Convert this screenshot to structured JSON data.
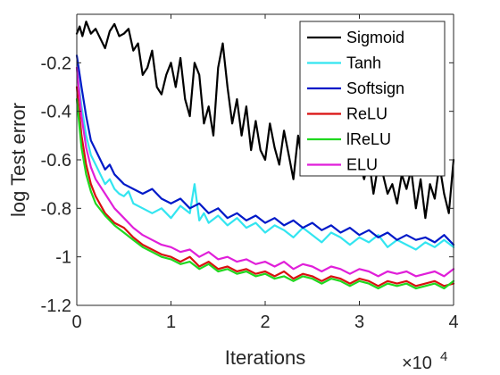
{
  "chart_data": {
    "type": "line",
    "xlabel": "Iterations",
    "ylabel": "log Test error",
    "x_multiplier": "×10",
    "x_multiplier_exp": "4",
    "xlim": [
      0,
      4
    ],
    "ylim": [
      -1.2,
      0
    ],
    "xticks": [
      0,
      1,
      2,
      3,
      4
    ],
    "xtick_labels": [
      "0",
      "1",
      "2",
      "3",
      "4"
    ],
    "yticks": [
      -1.2,
      -1,
      -0.8,
      -0.6,
      -0.4,
      -0.2
    ],
    "ytick_labels": [
      "-1.2",
      "-1",
      "-0.8",
      "-0.6",
      "-0.4",
      "-0.2"
    ],
    "grid": false,
    "legend_position": "top-right",
    "series": [
      {
        "name": "Sigmoid",
        "color": "#000000",
        "x": [
          0,
          0.03,
          0.06,
          0.1,
          0.15,
          0.2,
          0.25,
          0.3,
          0.35,
          0.4,
          0.45,
          0.5,
          0.55,
          0.6,
          0.65,
          0.7,
          0.75,
          0.8,
          0.85,
          0.9,
          0.95,
          1.0,
          1.05,
          1.1,
          1.15,
          1.2,
          1.25,
          1.3,
          1.35,
          1.4,
          1.45,
          1.5,
          1.55,
          1.6,
          1.65,
          1.7,
          1.75,
          1.8,
          1.85,
          1.9,
          1.95,
          2.0,
          2.05,
          2.1,
          2.15,
          2.2,
          2.25,
          2.3,
          2.35,
          2.4,
          2.45,
          2.5,
          2.55,
          2.6,
          2.65,
          2.7,
          2.75,
          2.8,
          2.85,
          2.9,
          2.95,
          3.0,
          3.05,
          3.1,
          3.15,
          3.2,
          3.25,
          3.3,
          3.35,
          3.4,
          3.45,
          3.5,
          3.55,
          3.6,
          3.65,
          3.7,
          3.75,
          3.8,
          3.85,
          3.9,
          3.95,
          4.0
        ],
        "y": [
          -0.08,
          -0.05,
          -0.09,
          -0.03,
          -0.08,
          -0.06,
          -0.1,
          -0.14,
          -0.07,
          -0.04,
          -0.09,
          -0.08,
          -0.06,
          -0.15,
          -0.12,
          -0.25,
          -0.22,
          -0.15,
          -0.3,
          -0.33,
          -0.25,
          -0.2,
          -0.3,
          -0.18,
          -0.35,
          -0.42,
          -0.2,
          -0.25,
          -0.45,
          -0.38,
          -0.5,
          -0.22,
          -0.12,
          -0.3,
          -0.45,
          -0.35,
          -0.5,
          -0.38,
          -0.56,
          -0.44,
          -0.56,
          -0.6,
          -0.45,
          -0.55,
          -0.62,
          -0.48,
          -0.58,
          -0.68,
          -0.5,
          -0.62,
          -0.55,
          -0.64,
          -0.58,
          -0.52,
          -0.6,
          -0.5,
          -0.65,
          -0.58,
          -0.52,
          -0.64,
          -0.56,
          -0.61,
          -0.68,
          -0.6,
          -0.74,
          -0.62,
          -0.66,
          -0.74,
          -0.7,
          -0.78,
          -0.66,
          -0.72,
          -0.64,
          -0.8,
          -0.68,
          -0.84,
          -0.7,
          -0.76,
          -0.62,
          -0.74,
          -0.82,
          -0.6
        ]
      },
      {
        "name": "Tanh",
        "color": "#33e5f0",
        "x": [
          0,
          0.05,
          0.1,
          0.15,
          0.2,
          0.25,
          0.3,
          0.35,
          0.4,
          0.45,
          0.5,
          0.55,
          0.6,
          0.7,
          0.8,
          0.9,
          1.0,
          1.1,
          1.2,
          1.25,
          1.3,
          1.35,
          1.4,
          1.5,
          1.6,
          1.7,
          1.8,
          1.9,
          2.0,
          2.1,
          2.2,
          2.3,
          2.4,
          2.5,
          2.6,
          2.7,
          2.8,
          2.9,
          3.0,
          3.1,
          3.2,
          3.3,
          3.4,
          3.5,
          3.6,
          3.7,
          3.8,
          3.9,
          4.0
        ],
        "y": [
          -0.22,
          -0.38,
          -0.5,
          -0.58,
          -0.62,
          -0.66,
          -0.7,
          -0.68,
          -0.72,
          -0.74,
          -0.75,
          -0.73,
          -0.78,
          -0.8,
          -0.82,
          -0.8,
          -0.84,
          -0.79,
          -0.82,
          -0.7,
          -0.85,
          -0.82,
          -0.86,
          -0.83,
          -0.87,
          -0.84,
          -0.88,
          -0.86,
          -0.9,
          -0.87,
          -0.89,
          -0.92,
          -0.88,
          -0.91,
          -0.94,
          -0.9,
          -0.92,
          -0.95,
          -0.92,
          -0.94,
          -0.91,
          -0.96,
          -0.93,
          -0.95,
          -0.97,
          -0.94,
          -0.96,
          -0.93,
          -0.96
        ]
      },
      {
        "name": "Softsign",
        "color": "#0019c8",
        "x": [
          0,
          0.05,
          0.1,
          0.15,
          0.2,
          0.25,
          0.3,
          0.35,
          0.4,
          0.5,
          0.6,
          0.7,
          0.8,
          0.9,
          1.0,
          1.1,
          1.2,
          1.3,
          1.4,
          1.5,
          1.6,
          1.7,
          1.8,
          1.9,
          2.0,
          2.1,
          2.2,
          2.3,
          2.4,
          2.5,
          2.6,
          2.7,
          2.8,
          2.9,
          3.0,
          3.1,
          3.2,
          3.3,
          3.4,
          3.5,
          3.6,
          3.7,
          3.8,
          3.9,
          4.0
        ],
        "y": [
          -0.17,
          -0.3,
          -0.42,
          -0.52,
          -0.56,
          -0.6,
          -0.64,
          -0.62,
          -0.66,
          -0.7,
          -0.72,
          -0.74,
          -0.72,
          -0.76,
          -0.78,
          -0.76,
          -0.8,
          -0.78,
          -0.82,
          -0.8,
          -0.84,
          -0.82,
          -0.85,
          -0.83,
          -0.86,
          -0.84,
          -0.87,
          -0.85,
          -0.88,
          -0.86,
          -0.89,
          -0.87,
          -0.9,
          -0.88,
          -0.91,
          -0.89,
          -0.92,
          -0.9,
          -0.93,
          -0.91,
          -0.93,
          -0.92,
          -0.94,
          -0.91,
          -0.95
        ]
      },
      {
        "name": "ReLU",
        "color": "#d91010",
        "x": [
          0,
          0.05,
          0.1,
          0.15,
          0.2,
          0.3,
          0.4,
          0.5,
          0.6,
          0.7,
          0.8,
          0.9,
          1.0,
          1.1,
          1.2,
          1.3,
          1.4,
          1.5,
          1.6,
          1.7,
          1.8,
          1.9,
          2.0,
          2.1,
          2.2,
          2.3,
          2.4,
          2.5,
          2.6,
          2.7,
          2.8,
          2.9,
          3.0,
          3.1,
          3.2,
          3.3,
          3.4,
          3.5,
          3.6,
          3.7,
          3.8,
          3.9,
          4.0
        ],
        "y": [
          -0.3,
          -0.5,
          -0.62,
          -0.7,
          -0.75,
          -0.82,
          -0.86,
          -0.88,
          -0.92,
          -0.95,
          -0.97,
          -0.99,
          -1.0,
          -1.02,
          -1.0,
          -1.04,
          -1.02,
          -1.05,
          -1.04,
          -1.06,
          -1.05,
          -1.07,
          -1.06,
          -1.08,
          -1.06,
          -1.09,
          -1.07,
          -1.08,
          -1.1,
          -1.08,
          -1.09,
          -1.11,
          -1.09,
          -1.1,
          -1.12,
          -1.1,
          -1.11,
          -1.1,
          -1.12,
          -1.11,
          -1.1,
          -1.12,
          -1.11
        ]
      },
      {
        "name": "lReLU",
        "color": "#1fd81f",
        "x": [
          0,
          0.05,
          0.1,
          0.15,
          0.2,
          0.3,
          0.4,
          0.5,
          0.6,
          0.7,
          0.8,
          0.9,
          1.0,
          1.1,
          1.2,
          1.3,
          1.4,
          1.5,
          1.6,
          1.7,
          1.8,
          1.9,
          2.0,
          2.1,
          2.2,
          2.3,
          2.4,
          2.5,
          2.6,
          2.7,
          2.8,
          2.9,
          3.0,
          3.1,
          3.2,
          3.3,
          3.4,
          3.5,
          3.6,
          3.7,
          3.8,
          3.9,
          4.0
        ],
        "y": [
          -0.35,
          -0.55,
          -0.66,
          -0.73,
          -0.78,
          -0.83,
          -0.87,
          -0.9,
          -0.93,
          -0.96,
          -0.98,
          -1.0,
          -1.01,
          -1.03,
          -1.02,
          -1.05,
          -1.03,
          -1.06,
          -1.05,
          -1.07,
          -1.06,
          -1.08,
          -1.07,
          -1.09,
          -1.08,
          -1.1,
          -1.08,
          -1.09,
          -1.11,
          -1.09,
          -1.1,
          -1.12,
          -1.1,
          -1.11,
          -1.13,
          -1.11,
          -1.12,
          -1.11,
          -1.13,
          -1.12,
          -1.11,
          -1.13,
          -1.1
        ]
      },
      {
        "name": "ELU",
        "color": "#e01fd9",
        "x": [
          0,
          0.05,
          0.1,
          0.15,
          0.2,
          0.3,
          0.4,
          0.5,
          0.6,
          0.7,
          0.8,
          0.9,
          1.0,
          1.1,
          1.2,
          1.3,
          1.4,
          1.5,
          1.6,
          1.7,
          1.8,
          1.9,
          2.0,
          2.1,
          2.2,
          2.3,
          2.4,
          2.5,
          2.6,
          2.7,
          2.8,
          2.9,
          3.0,
          3.1,
          3.2,
          3.3,
          3.4,
          3.5,
          3.6,
          3.7,
          3.8,
          3.9,
          4.0
        ],
        "y": [
          -0.22,
          -0.42,
          -0.55,
          -0.63,
          -0.68,
          -0.74,
          -0.8,
          -0.84,
          -0.88,
          -0.91,
          -0.93,
          -0.95,
          -0.96,
          -0.98,
          -0.97,
          -1.0,
          -0.98,
          -1.01,
          -1.0,
          -1.02,
          -1.01,
          -1.03,
          -1.02,
          -1.04,
          -1.02,
          -1.05,
          -1.03,
          -1.04,
          -1.06,
          -1.04,
          -1.05,
          -1.07,
          -1.05,
          -1.06,
          -1.08,
          -1.06,
          -1.07,
          -1.06,
          -1.08,
          -1.07,
          -1.06,
          -1.08,
          -1.05
        ]
      }
    ]
  }
}
